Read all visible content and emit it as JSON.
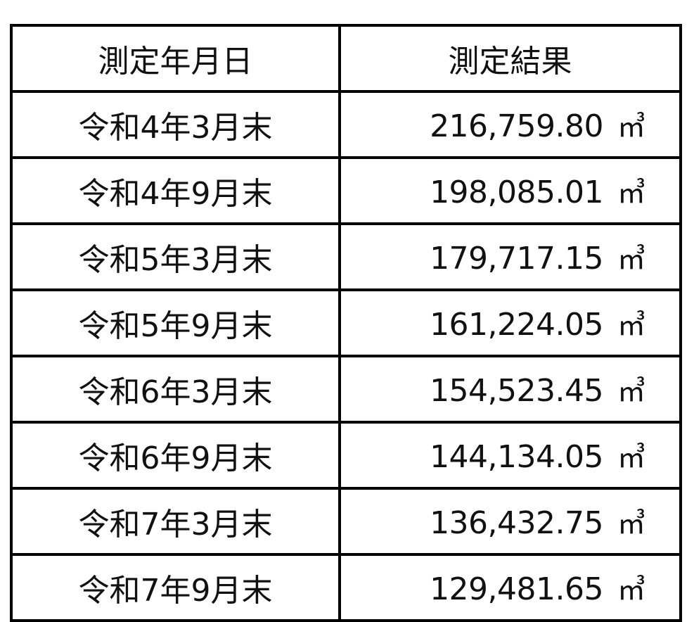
{
  "table": {
    "headers": [
      "測定年月日",
      "測定結果"
    ],
    "unit": "㎥",
    "rows": [
      {
        "date": "令和4年3月末",
        "value": "216,759.80"
      },
      {
        "date": "令和4年9月末",
        "value": "198,085.01"
      },
      {
        "date": "令和5年3月末",
        "value": "179,717.15"
      },
      {
        "date": "令和5年9月末",
        "value": "161,224.05"
      },
      {
        "date": "令和6年3月末",
        "value": "154,523.45"
      },
      {
        "date": "令和6年9月末",
        "value": "144,134.05"
      },
      {
        "date": "令和7年3月末",
        "value": "136,432.75"
      },
      {
        "date": "令和7年9月末",
        "value": "129,481.65"
      }
    ]
  }
}
